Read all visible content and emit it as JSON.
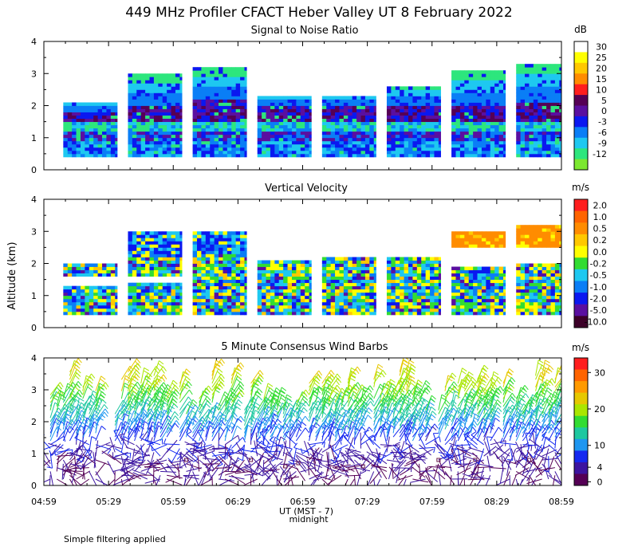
{
  "chart_data": [
    {
      "type": "heatmap",
      "title": "449 MHz Profiler CFACT Heber Valley UT  8 February 2022",
      "subtitle": "Signal to Noise Ratio",
      "ylabel": "Altitude (km)",
      "ylim": [
        0,
        4
      ],
      "yticks": [
        "0",
        "1",
        "2",
        "3",
        "4"
      ],
      "xlabel": "UT  (MST - 7)",
      "xlim": [
        0,
        240
      ],
      "colorbar_unit": "dB",
      "colorbar_labels": [
        "30",
        "25",
        "20",
        "15",
        "10",
        "5",
        "0",
        "-3",
        "-6",
        "-9",
        "-12"
      ],
      "colorbar_colors": [
        "#ffffff",
        "#ffff00",
        "#ffc800",
        "#ff8c00",
        "#ff1e1e",
        "#550055",
        "#5a0fa0",
        "#0a18f0",
        "#0a7ef6",
        "#1ec8f0",
        "#2de67d",
        "#7ce830"
      ],
      "blocks": [
        {
          "start": 9,
          "end": 34,
          "low": [
            0.4,
            1.8
          ],
          "high": [
            1.8,
            2.1
          ]
        },
        {
          "start": 39,
          "end": 64,
          "low": [
            0.4,
            2.0
          ],
          "high": [
            2.0,
            3.0
          ]
        },
        {
          "start": 69,
          "end": 94,
          "low": [
            0.4,
            2.2
          ],
          "high": [
            2.2,
            3.2
          ]
        },
        {
          "start": 99,
          "end": 124,
          "low": [
            0.4,
            2.0
          ],
          "high": [
            2.0,
            2.3
          ]
        },
        {
          "start": 129,
          "end": 154,
          "low": [
            0.4,
            2.0
          ],
          "high": [
            2.0,
            2.3
          ]
        },
        {
          "start": 159,
          "end": 184,
          "low": [
            0.4,
            2.0
          ],
          "high": [
            2.0,
            2.6
          ]
        },
        {
          "start": 189,
          "end": 214,
          "low": [
            0.4,
            2.0
          ],
          "high": [
            2.0,
            3.1
          ]
        },
        {
          "start": 219,
          "end": 240,
          "low": [
            0.4,
            2.1
          ],
          "high": [
            2.1,
            3.3
          ]
        }
      ]
    },
    {
      "type": "heatmap",
      "subtitle": "Vertical Velocity",
      "ylabel": "Altitude (km)",
      "ylim": [
        0,
        4
      ],
      "yticks": [
        "0",
        "1",
        "2",
        "3",
        "4"
      ],
      "xlim": [
        0,
        240
      ],
      "colorbar_unit": "m/s",
      "colorbar_labels": [
        "2.0",
        "1.0",
        "0.5",
        "0.2",
        "0.0",
        "-0.2",
        "-0.5",
        "-1.0",
        "-2.0",
        "-5.0",
        "-10.0"
      ],
      "colorbar_colors": [
        "#ff1e1e",
        "#ff6400",
        "#ff8c00",
        "#ffc800",
        "#ffff00",
        "#32dc32",
        "#1ec8f0",
        "#0a7ef6",
        "#0a18f0",
        "#5a0fa0",
        "#3c0028"
      ],
      "blocks": [
        {
          "start": 9,
          "end": 34,
          "low": [
            0.4,
            1.3
          ],
          "high": [
            1.6,
            2.0
          ]
        },
        {
          "start": 39,
          "end": 64,
          "low": [
            0.4,
            1.4
          ],
          "high": [
            1.6,
            3.0
          ]
        },
        {
          "start": 69,
          "end": 94,
          "low": [
            0.4,
            2.1
          ],
          "high": [
            2.1,
            3.0
          ]
        },
        {
          "start": 99,
          "end": 124,
          "low": [
            0.4,
            1.9
          ],
          "high": [
            1.9,
            2.1
          ]
        },
        {
          "start": 129,
          "end": 154,
          "low": [
            0.4,
            2.1
          ],
          "high": [
            2.1,
            2.2
          ]
        },
        {
          "start": 159,
          "end": 184,
          "low": [
            0.4,
            2.1
          ],
          "high": [
            2.1,
            2.2
          ]
        },
        {
          "start": 189,
          "end": 214,
          "low": [
            0.4,
            1.9
          ],
          "high": [
            2.5,
            3.0
          ]
        },
        {
          "start": 219,
          "end": 240,
          "low": [
            0.4,
            2.0
          ],
          "high": [
            2.5,
            3.2
          ]
        }
      ]
    },
    {
      "type": "wind_barbs",
      "subtitle": "5 Minute Consensus Wind Barbs",
      "ylabel": "Altitude (km)",
      "ylim": [
        0,
        4
      ],
      "yticks": [
        "0",
        "1",
        "2",
        "3",
        "4"
      ],
      "xlim": [
        0,
        240
      ],
      "xticks": [
        "04:59",
        "05:29",
        "05:59",
        "06:29",
        "06:59",
        "07:29",
        "07:59",
        "08:29",
        "08:59"
      ],
      "xtick_minutes": [
        0,
        30,
        60,
        90,
        120,
        150,
        180,
        210,
        240
      ],
      "colorbar_unit": "m/s",
      "colorbar_labels": [
        "30",
        "20",
        "10",
        "4",
        "0"
      ],
      "colorbar_label_values": [
        30,
        20,
        10,
        4,
        0
      ],
      "colorbar_range": [
        -1,
        34
      ],
      "colorbar_colors": [
        "#ff1e1e",
        "#ff6400",
        "#ff9a00",
        "#e6c800",
        "#aae600",
        "#32dc32",
        "#1ec8a0",
        "#1e96f0",
        "#1428f0",
        "#3c14a0",
        "#550055"
      ],
      "wind_speed_by_altitude_km": [
        [
          0.4,
          2
        ],
        [
          1.0,
          4
        ],
        [
          1.5,
          8
        ],
        [
          2.0,
          12
        ],
        [
          2.5,
          16
        ],
        [
          3.0,
          20
        ],
        [
          4.0,
          24
        ]
      ],
      "wind_columns_minutes": [
        3,
        6,
        9,
        12,
        15,
        18,
        21,
        24,
        33,
        36,
        39,
        42,
        45,
        48,
        51,
        54,
        57,
        63,
        66,
        69,
        72,
        75,
        78,
        81,
        84,
        87,
        93,
        96,
        99,
        102,
        105,
        108,
        111,
        114,
        117,
        123,
        126,
        129,
        132,
        135,
        138,
        141,
        144,
        147,
        153,
        156,
        159,
        162,
        165,
        168,
        171,
        174,
        177,
        183,
        186,
        189,
        192,
        195,
        198,
        201,
        204,
        207,
        213,
        216,
        219,
        222,
        225,
        228,
        231,
        234,
        237
      ],
      "note_midnight": "midnight"
    }
  ],
  "footer": {
    "note": "Simple filtering applied"
  }
}
